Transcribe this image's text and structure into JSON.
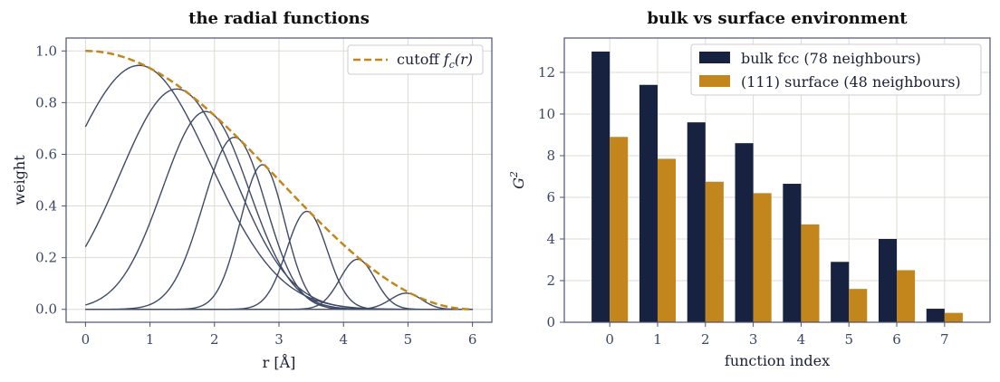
{
  "chart_data": [
    {
      "type": "line",
      "title": "the radial functions",
      "xlabel": "r  [Å]",
      "ylabel": "weight",
      "xlim": [
        -0.3,
        6.3
      ],
      "ylim": [
        -0.05,
        1.05
      ],
      "x_ticks": [
        "0",
        "1",
        "2",
        "3",
        "4",
        "5",
        "6"
      ],
      "y_ticks": [
        "0.0",
        "0.2",
        "0.4",
        "0.6",
        "0.8",
        "1.0"
      ],
      "grid": true,
      "legend": "top-right",
      "cutoff": {
        "name": "cutoff f_c(r)",
        "legend_main": "cutoff ",
        "legend_math": "f",
        "legend_sub": "c",
        "legend_arg": "(r)",
        "rc": 6.0,
        "style": "dashed",
        "color": "#c2861c"
      },
      "gaussian_centers": [
        1.0,
        1.6,
        2.0,
        2.4,
        2.8,
        3.5,
        4.3,
        5.1
      ],
      "gaussian_widths": [
        1.2,
        0.95,
        0.7,
        0.5,
        0.35,
        0.32,
        0.28,
        0.26
      ],
      "series_color": "#3f4a66",
      "grid_color": "#dddbd2",
      "frame_color": "#4b5273"
    },
    {
      "type": "bar",
      "title": "bulk vs surface environment",
      "xlabel": "function index",
      "ylabel": "G",
      "ylabel_sup": "2",
      "categories": [
        "0",
        "1",
        "2",
        "3",
        "4",
        "5",
        "6",
        "7"
      ],
      "y_ticks": [
        "0",
        "2",
        "4",
        "6",
        "8",
        "10",
        "12"
      ],
      "ylim": [
        0,
        13.65
      ],
      "grid": true,
      "legend": "top-right",
      "series": [
        {
          "name": "bulk fcc (78 neighbours)",
          "color": "#172240",
          "values": [
            13.0,
            11.4,
            9.6,
            8.6,
            6.65,
            2.9,
            4.0,
            0.65
          ]
        },
        {
          "name": "(111) surface (48 neighbours)",
          "color": "#c2861c",
          "values": [
            8.9,
            7.85,
            6.75,
            6.2,
            4.7,
            1.6,
            2.5,
            0.45
          ]
        }
      ],
      "grid_color": "#dddbd2",
      "frame_color": "#4b5273"
    }
  ]
}
